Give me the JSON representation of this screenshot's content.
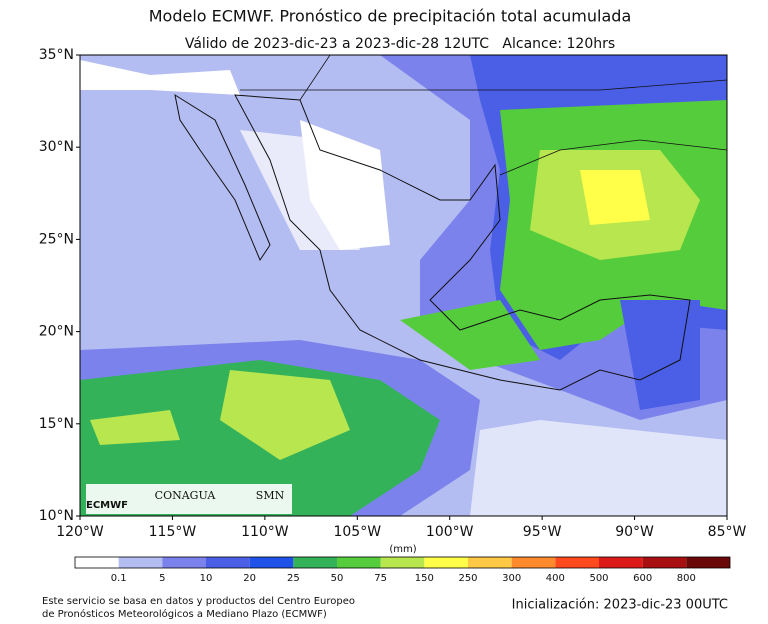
{
  "header": {
    "title": "Modelo ECMWF. Pronóstico de precipitación total acumulada",
    "subtitle": "Válido de 2023-dic-23 a 2023-dic-28 12UTC   Alcance: 120hrs"
  },
  "map": {
    "lat_labels": [
      "35°N",
      "30°N",
      "25°N",
      "20°N",
      "15°N",
      "10°N"
    ],
    "lon_labels": [
      "120°W",
      "115°W",
      "110°W",
      "105°W",
      "100°W",
      "95°W",
      "90°W",
      "85°W"
    ],
    "logos": [
      "ECMWF",
      "CONAGUA",
      "SMN"
    ]
  },
  "colorbar": {
    "unit": "(mm)",
    "labels": [
      "0.1",
      "5",
      "10",
      "20",
      "25",
      "50",
      "75",
      "150",
      "250",
      "300",
      "400",
      "500",
      "600",
      "800"
    ],
    "colors": [
      "#ffffff",
      "#b4bdf2",
      "#7b82ec",
      "#4a5fe6",
      "#1f52e8",
      "#33b25a",
      "#55cc3c",
      "#b8e64e",
      "#ffff4a",
      "#ffc845",
      "#ff8a2e",
      "#ff4a1e",
      "#dd1a1a",
      "#a80f10",
      "#6a0808"
    ]
  },
  "footer": {
    "note_lines": [
      "Este servicio se basa en datos y productos del Centro Europeo",
      "de Pronósticos Meteorológicos a Mediano Plazo (ECMWF)"
    ],
    "init": "Inicialización: 2023-dic-23 00UTC"
  }
}
